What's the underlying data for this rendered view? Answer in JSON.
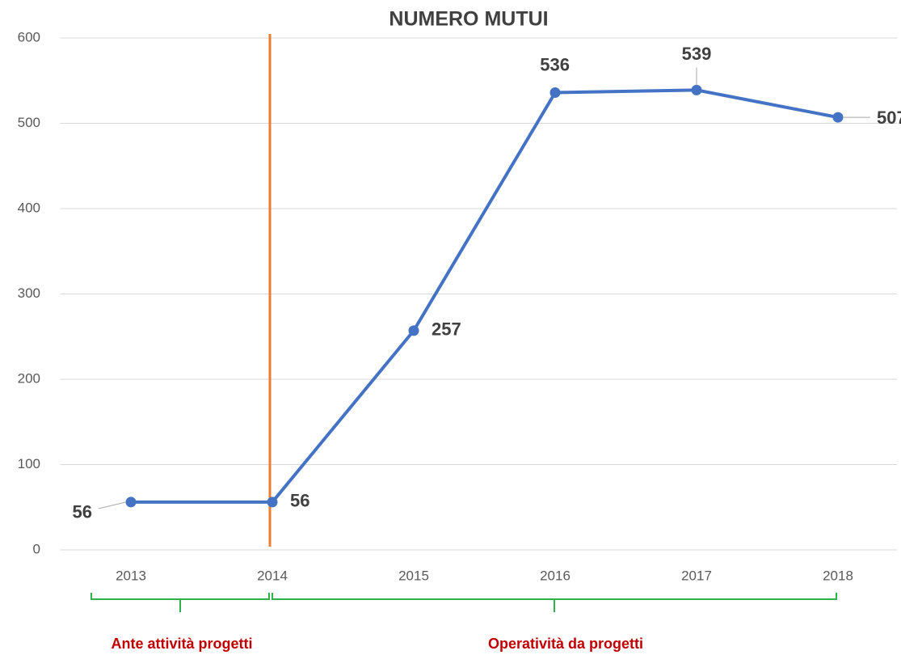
{
  "chart_data": {
    "type": "line",
    "title": "NUMERO MUTUI",
    "categories": [
      "2013",
      "2014",
      "2015",
      "2016",
      "2017",
      "2018"
    ],
    "values": [
      56,
      56,
      257,
      536,
      539,
      507
    ],
    "color": "#4472c4",
    "ylim": [
      0,
      600
    ],
    "yticks": [
      0,
      100,
      200,
      300,
      400,
      500,
      600
    ],
    "grid": true,
    "annotations": [
      "Ante attività progetti",
      "Operatività da progetti"
    ]
  }
}
